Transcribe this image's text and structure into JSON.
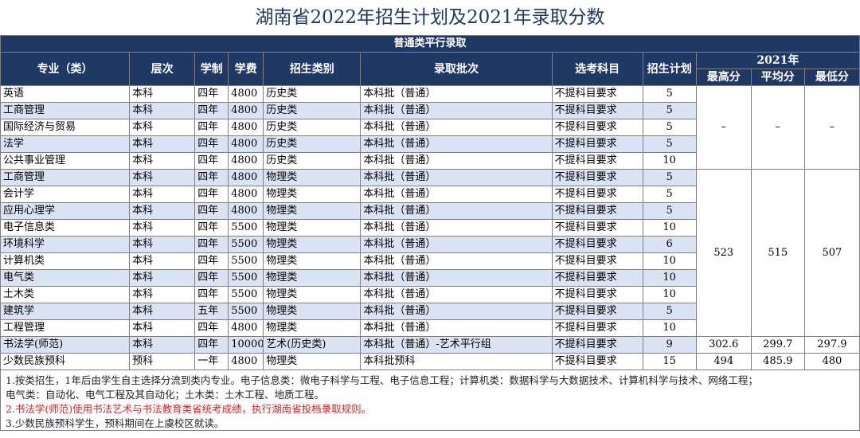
{
  "title": "湖南省2022年招生计划及2021年录取分数",
  "subtitle": "普通类平行录取",
  "headers": {
    "major": "专业（类）",
    "level": "层次",
    "years": "学制",
    "fee": "学费",
    "category": "招生类别",
    "batch": "录取批次",
    "subjects": "选考科目",
    "plan": "招生计划",
    "year2021": "2021年",
    "max": "最高分",
    "avg": "平均分",
    "min": "最低分"
  },
  "rows": [
    {
      "major": "英语",
      "level": "本科",
      "years": "四年",
      "fee": "4800",
      "category": "历史类",
      "batch": "本科批（普通）",
      "subjects": "不提科目要求",
      "plan": "5"
    },
    {
      "major": "工商管理",
      "level": "本科",
      "years": "四年",
      "fee": "4800",
      "category": "历史类",
      "batch": "本科批（普通）",
      "subjects": "不提科目要求",
      "plan": "5"
    },
    {
      "major": "国际经济与贸易",
      "level": "本科",
      "years": "四年",
      "fee": "4800",
      "category": "历史类",
      "batch": "本科批（普通）",
      "subjects": "不提科目要求",
      "plan": "5"
    },
    {
      "major": "法学",
      "level": "本科",
      "years": "四年",
      "fee": "4800",
      "category": "历史类",
      "batch": "本科批（普通）",
      "subjects": "不提科目要求",
      "plan": "5"
    },
    {
      "major": "公共事业管理",
      "level": "本科",
      "years": "四年",
      "fee": "4800",
      "category": "历史类",
      "batch": "本科批（普通）",
      "subjects": "不提科目要求",
      "plan": "10"
    },
    {
      "major": "工商管理",
      "level": "本科",
      "years": "四年",
      "fee": "4800",
      "category": "物理类",
      "batch": "本科批（普通）",
      "subjects": "不提科目要求",
      "plan": "5"
    },
    {
      "major": "会计学",
      "level": "本科",
      "years": "四年",
      "fee": "4800",
      "category": "物理类",
      "batch": "本科批（普通）",
      "subjects": "不提科目要求",
      "plan": "5"
    },
    {
      "major": "应用心理学",
      "level": "本科",
      "years": "四年",
      "fee": "4800",
      "category": "物理类",
      "batch": "本科批（普通）",
      "subjects": "不提科目要求",
      "plan": "5"
    },
    {
      "major": "电子信息类",
      "level": "本科",
      "years": "四年",
      "fee": "5500",
      "category": "物理类",
      "batch": "本科批（普通）",
      "subjects": "不提科目要求",
      "plan": "10"
    },
    {
      "major": "环境科学",
      "level": "本科",
      "years": "四年",
      "fee": "5500",
      "category": "物理类",
      "batch": "本科批（普通）",
      "subjects": "不提科目要求",
      "plan": "6"
    },
    {
      "major": "计算机类",
      "level": "本科",
      "years": "四年",
      "fee": "5500",
      "category": "物理类",
      "batch": "本科批（普通）",
      "subjects": "不提科目要求",
      "plan": "10"
    },
    {
      "major": "电气类",
      "level": "本科",
      "years": "四年",
      "fee": "5500",
      "category": "物理类",
      "batch": "本科批（普通）",
      "subjects": "不提科目要求",
      "plan": "10"
    },
    {
      "major": "土木类",
      "level": "本科",
      "years": "四年",
      "fee": "5500",
      "category": "物理类",
      "batch": "本科批（普通）",
      "subjects": "不提科目要求",
      "plan": "10"
    },
    {
      "major": "建筑学",
      "level": "本科",
      "years": "五年",
      "fee": "5500",
      "category": "物理类",
      "batch": "本科批（普通）",
      "subjects": "不提科目要求",
      "plan": "5"
    },
    {
      "major": "工程管理",
      "level": "本科",
      "years": "四年",
      "fee": "4800",
      "category": "物理类",
      "batch": "本科批（普通）",
      "subjects": "不提科目要求",
      "plan": "10"
    },
    {
      "major": "书法学(师范)",
      "level": "本科",
      "years": "四年",
      "fee": "10000",
      "category": "艺术(历史类)",
      "batch": "本科批（普通）-艺术平行组",
      "subjects": "不提科目要求",
      "plan": "9"
    },
    {
      "major": "少数民族预科",
      "level": "预科",
      "years": "一年",
      "fee": "4800",
      "category": "物理类",
      "batch": "本科批预科",
      "subjects": "不提科目要求",
      "plan": "15"
    }
  ],
  "scores": {
    "history": {
      "max": "–",
      "avg": "–",
      "min": "–"
    },
    "physics": {
      "max": "523",
      "avg": "515",
      "min": "507"
    },
    "calligraphy": {
      "max": "302.6",
      "avg": "299.7",
      "min": "297.9"
    },
    "prep": {
      "max": "494",
      "avg": "485.9",
      "min": "480"
    }
  },
  "notes": [
    "1.按类招生，1年后由学生自主选择分流到类内专业。电子信息类：微电子科学与工程、电子信息工程；计算机类：数据科学与大数据技术、计算机科学与技术、网络工程；",
    "电气类：自动化、电气工程及其自动化；土木类：土木工程、地质工程。",
    "2.书法学(师范)使用书法艺术与书法教育类省统考成绩，执行湖南省投档录取规则。",
    "3.少数民族预科学生，预科期间在上虞校区就读。"
  ],
  "colors": {
    "header_bg": "#203864",
    "alt_row": "#dae3f3",
    "note_red": "#e02020",
    "title": "#1f3864"
  }
}
